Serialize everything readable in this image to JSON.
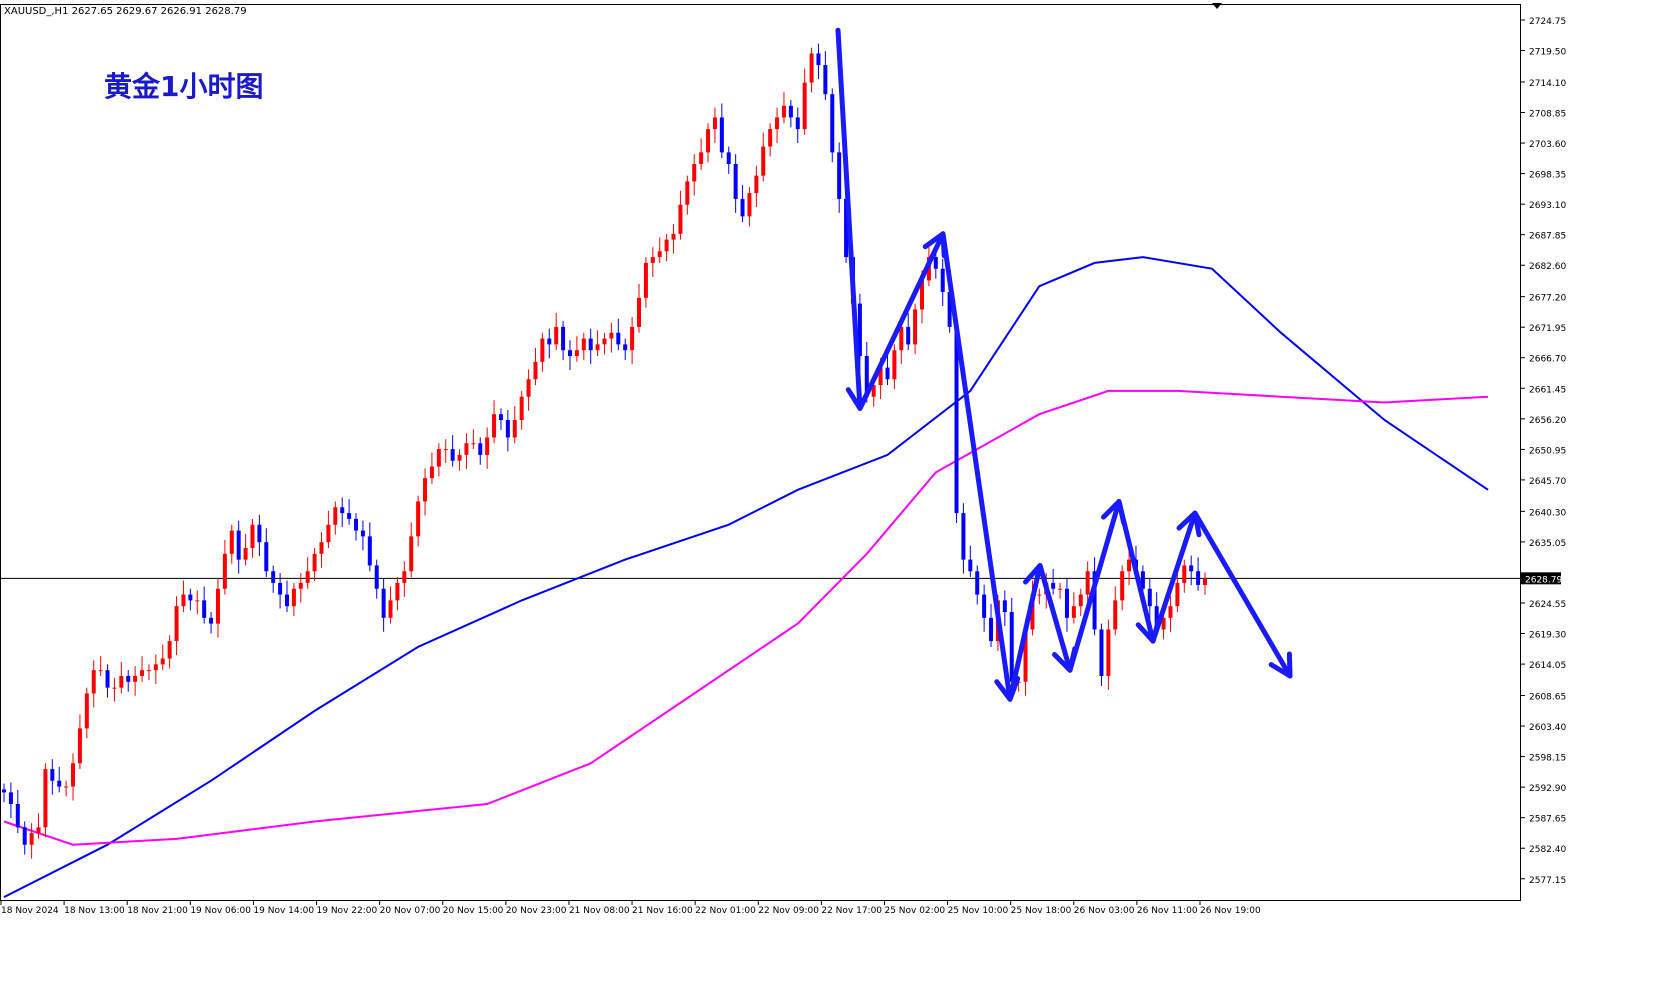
{
  "header": {
    "symbol_line": "XAUUSD_,H1  2627.65 2629.67 2626.91 2628.79"
  },
  "chart_title": "黄金1小时图",
  "price_tag": "2628.79",
  "colors": {
    "bull": "#ff0000",
    "bear": "#0000ff",
    "ma_fast": "#0000ff",
    "ma_slow": "#ff00ff",
    "arrows": "#1a1aff",
    "title": "#1a1acc"
  },
  "chart_data": {
    "type": "candlestick",
    "symbol": "XAUUSD_",
    "timeframe": "H1",
    "ohlc": {
      "open": 2627.65,
      "high": 2629.67,
      "low": 2626.91,
      "close": 2628.79
    },
    "last_price": 2628.79,
    "ylim": [
      2573.5,
      2727.5
    ],
    "y_ticks": [
      "2724.75",
      "2719.50",
      "2714.10",
      "2708.85",
      "2703.60",
      "2698.35",
      "2693.10",
      "2687.85",
      "2682.60",
      "2677.20",
      "2671.95",
      "2666.70",
      "2661.45",
      "2656.20",
      "2650.95",
      "2645.70",
      "2640.30",
      "2635.05",
      "2624.55",
      "2619.30",
      "2614.05",
      "2608.65",
      "2603.40",
      "2598.15",
      "2592.90",
      "2587.65",
      "2582.40",
      "2577.15"
    ],
    "x_ticks": [
      "18 Nov 2024",
      "18 Nov 13:00",
      "18 Nov 21:00",
      "19 Nov 06:00",
      "19 Nov 14:00",
      "19 Nov 22:00",
      "20 Nov 07:00",
      "20 Nov 15:00",
      "20 Nov 23:00",
      "21 Nov 08:00",
      "21 Nov 16:00",
      "22 Nov 01:00",
      "22 Nov 09:00",
      "22 Nov 17:00",
      "25 Nov 02:00",
      "25 Nov 10:00",
      "25 Nov 18:00",
      "26 Nov 03:00",
      "26 Nov 11:00",
      "26 Nov 19:00"
    ],
    "candles_close": [
      2592,
      2590,
      2586,
      2583,
      2585,
      2586,
      2596,
      2594,
      2593,
      2593,
      2597,
      2603,
      2609,
      2613,
      2613,
      2610,
      2610,
      2612,
      2611,
      2612,
      2613,
      2613,
      2614,
      2615,
      2618,
      2624,
      2626,
      2625,
      2625,
      2622,
      2621,
      2627,
      2633,
      2637,
      2632,
      2634,
      2638,
      2635,
      2630,
      2628,
      2626,
      2624,
      2627,
      2628,
      2630,
      2633,
      2635,
      2638,
      2641,
      2640,
      2639,
      2637,
      2636,
      2631,
      2627,
      2622,
      2625,
      2628,
      2630,
      2636,
      2642,
      2646,
      2648,
      2651,
      2651,
      2649,
      2650,
      2652,
      2652,
      2650,
      2653,
      2657,
      2656,
      2653,
      2656,
      2660,
      2663,
      2666,
      2670,
      2669,
      2672,
      2668,
      2667,
      2668,
      2670,
      2668,
      2669,
      2670,
      2671,
      2669,
      2668,
      2672,
      2677,
      2683,
      2684,
      2685,
      2687,
      2688,
      2693,
      2697,
      2700,
      2702,
      2706,
      2708,
      2702,
      2700,
      2694,
      2691,
      2695,
      2698,
      2703,
      2706,
      2708,
      2710,
      2708,
      2706,
      2714,
      2719,
      2717,
      2712,
      2702,
      2694,
      2684,
      2676,
      2667,
      2660,
      2662,
      2665,
      2663,
      2668,
      2672,
      2669,
      2675,
      2680,
      2684,
      2682,
      2678,
      2672,
      2640,
      2632,
      2630,
      2626,
      2622,
      2618,
      2625,
      2623,
      2611,
      2611,
      2620,
      2626,
      2626,
      2628,
      2627,
      2627,
      2622,
      2624,
      2626,
      2630,
      2620,
      2612,
      2620,
      2625,
      2630,
      2632,
      2630,
      2627,
      2624,
      2620,
      2622,
      2624,
      2628,
      2631,
      2630,
      2627.65,
      2628.79
    ],
    "series": [
      {
        "name": "",
        "color": "#0000ff",
        "points": [
          [
            0,
            2574
          ],
          [
            15,
            2583
          ],
          [
            30,
            2594
          ],
          [
            45,
            2606
          ],
          [
            60,
            2617
          ],
          [
            75,
            2625
          ],
          [
            90,
            2632
          ],
          [
            105,
            2638
          ],
          [
            115,
            2644
          ],
          [
            128,
            2650
          ],
          [
            140,
            2661
          ],
          [
            150,
            2679
          ],
          [
            158,
            2683
          ],
          [
            165,
            2684
          ],
          [
            175,
            2682
          ],
          [
            185,
            2671
          ],
          [
            200,
            2656
          ],
          [
            215,
            2644
          ]
        ]
      },
      {
        "name": "",
        "color": "#ff00ff",
        "points": [
          [
            0,
            2587
          ],
          [
            10,
            2583
          ],
          [
            25,
            2584
          ],
          [
            45,
            2587
          ],
          [
            70,
            2590
          ],
          [
            85,
            2597
          ],
          [
            100,
            2609
          ],
          [
            115,
            2621
          ],
          [
            125,
            2633
          ],
          [
            135,
            2647
          ],
          [
            150,
            2657
          ],
          [
            160,
            2661
          ],
          [
            170,
            2661
          ],
          [
            185,
            2660
          ],
          [
            200,
            2659
          ],
          [
            215,
            2660
          ]
        ]
      }
    ],
    "annotations": [
      {
        "type": "arrow-path",
        "color": "#1a1aff",
        "points": [
          [
            2723,
            838
          ],
          [
            2658,
            860
          ],
          [
            2688,
            943
          ],
          [
            2608,
            1010
          ],
          [
            2631,
            1040
          ],
          [
            2613,
            1070
          ],
          [
            2642,
            1119
          ],
          [
            2618,
            1153
          ],
          [
            2640,
            1195
          ],
          [
            2612,
            1290
          ]
        ]
      }
    ]
  }
}
